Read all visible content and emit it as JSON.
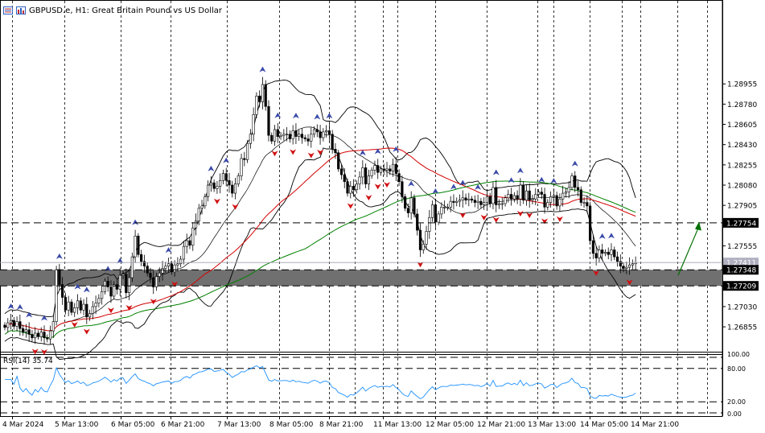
{
  "header": {
    "symbol": "GBPUSD.e, H1:",
    "description": "Great Britain Pound vs US Dollar",
    "icons": [
      "window-list-icon",
      "chart-bars-icon"
    ]
  },
  "rsi": {
    "label": "RSI(14) 35.74",
    "value": 35.74,
    "levels": [
      80,
      20
    ],
    "scale": [
      "100.00",
      "80.00",
      "20.00",
      "0.00"
    ]
  },
  "colors": {
    "bull": "#000000",
    "bear": "#000000",
    "grid": "#000000",
    "ma_fast": "#d40000",
    "ma_slow": "#008000",
    "bands": "#000000",
    "rsi": "#1e90ff",
    "zone": "#707070",
    "arrow_up": "#3a4aa8",
    "arrow_dn": "#d01010",
    "projection": "#007000"
  },
  "chart_data": {
    "type": "candlestick",
    "title": "",
    "ylim": [
      1.2664,
      1.2968
    ],
    "y_ticks": [
      "1.28955",
      "1.28780",
      "1.28605",
      "1.28430",
      "1.28255",
      "1.28080",
      "1.27905",
      "1.27555",
      "1.27030",
      "1.26855"
    ],
    "x_ticks": [
      "4 Mar 2024",
      "5 Mar 13:00",
      "6 Mar 05:00",
      "6 Mar 21:00",
      "7 Mar 13:00",
      "8 Mar 05:00",
      "8 Mar 21:00",
      "11 Mar 13:00",
      "12 Mar 05:00",
      "12 Mar 21:00",
      "13 Mar 13:00",
      "14 Mar 05:00",
      "14 Mar 21:00"
    ],
    "price_labels": [
      {
        "text": "1.27754",
        "value": 1.27754,
        "style": "dashed"
      },
      {
        "text": "1.27411",
        "value": 1.27411,
        "style": "current"
      },
      {
        "text": "1.27348",
        "value": 1.27348,
        "style": "dashed"
      },
      {
        "text": "1.27209",
        "value": 1.27209,
        "style": "dashed"
      }
    ],
    "zone": [
      1.27209,
      1.27348
    ],
    "projection": {
      "from": 1.273,
      "to": 1.2775
    },
    "closes": [
      1.2685,
      1.2689,
      1.2691,
      1.2686,
      1.269,
      1.2684,
      1.2681,
      1.2683,
      1.2679,
      1.2676,
      1.268,
      1.2677,
      1.2681,
      1.2676,
      1.2675,
      1.2682,
      1.269,
      1.2735,
      1.2722,
      1.2711,
      1.27,
      1.2707,
      1.2698,
      1.2702,
      1.2708,
      1.27,
      1.2705,
      1.2694,
      1.2697,
      1.2703,
      1.2706,
      1.271,
      1.2716,
      1.2725,
      1.272,
      1.2712,
      1.2722,
      1.2718,
      1.273,
      1.2731,
      1.2715,
      1.2728,
      1.2746,
      1.2764,
      1.2748,
      1.2742,
      1.2738,
      1.2732,
      1.2728,
      1.272,
      1.2729,
      1.2732,
      1.2736,
      1.2738,
      1.274,
      1.2733,
      1.2739,
      1.274,
      1.2744,
      1.2755,
      1.276,
      1.2756,
      1.2771,
      1.2777,
      1.2788,
      1.279,
      1.2798,
      1.2808,
      1.281,
      1.2805,
      1.2807,
      1.2812,
      1.2818,
      1.2812,
      1.2808,
      1.2801,
      1.2809,
      1.2816,
      1.2831,
      1.283,
      1.2844,
      1.2852,
      1.2869,
      1.2885,
      1.288,
      1.2895,
      1.2876,
      1.2851,
      1.2846,
      1.2856,
      1.285,
      1.2851,
      1.2852,
      1.2852,
      1.2848,
      1.2855,
      1.285,
      1.2852,
      1.2849,
      1.2848,
      1.2846,
      1.2852,
      1.2856,
      1.2854,
      1.2849,
      1.2854,
      1.2855,
      1.2852,
      1.2839,
      1.2836,
      1.2822,
      1.2817,
      1.2811,
      1.2801,
      1.2807,
      1.2804,
      1.2809,
      1.2815,
      1.2823,
      1.2809,
      1.2816,
      1.2821,
      1.2825,
      1.2819,
      1.2822,
      1.2821,
      1.2822,
      1.282,
      1.2826,
      1.2818,
      1.2811,
      1.2798,
      1.2788,
      1.2784,
      1.2797,
      1.2783,
      1.2769,
      1.2752,
      1.2757,
      1.2768,
      1.278,
      1.2791,
      1.2776,
      1.2783,
      1.2789,
      1.2789,
      1.2789,
      1.2794,
      1.2793,
      1.2794,
      1.2795,
      1.2797,
      1.2795,
      1.2796,
      1.2795,
      1.2793,
      1.2794,
      1.2791,
      1.2793,
      1.2798,
      1.2792,
      1.2806,
      1.2791,
      1.2792,
      1.2792,
      1.2797,
      1.28,
      1.2796,
      1.2799,
      1.2796,
      1.2808,
      1.2795,
      1.2803,
      1.2795,
      1.2796,
      1.28,
      1.2802,
      1.28,
      1.2789,
      1.2793,
      1.2798,
      1.2799,
      1.279,
      1.2796,
      1.2801,
      1.2802,
      1.2806,
      1.2816,
      1.2806,
      1.2804,
      1.2793,
      1.2793,
      1.279,
      1.276,
      1.2749,
      1.2745,
      1.2752,
      1.2749,
      1.275,
      1.2748,
      1.2752,
      1.2746,
      1.2742,
      1.2738,
      1.2736,
      1.2737,
      1.2739,
      1.274,
      1.2741
    ]
  }
}
